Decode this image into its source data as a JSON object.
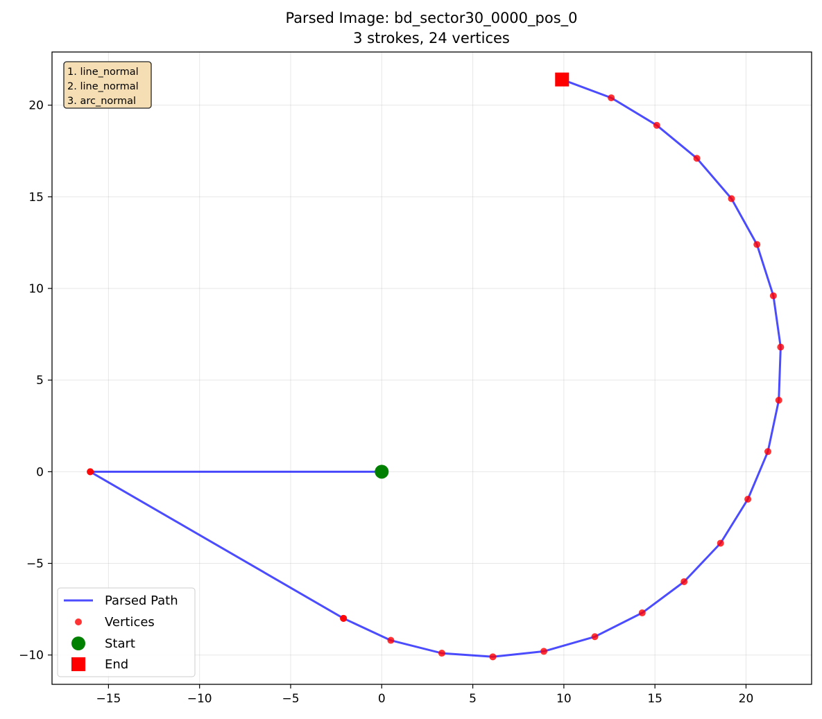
{
  "chart_data": {
    "type": "line",
    "title": "Parsed Image: bd_sector30_0000_pos_0",
    "subtitle": "3 strokes, 24 vertices",
    "xlabel": "",
    "ylabel": "",
    "xlim": [
      -18.1,
      23.6
    ],
    "ylim": [
      -11.6,
      22.9
    ],
    "xticks": [
      -15,
      -10,
      -5,
      0,
      5,
      10,
      15,
      20
    ],
    "yticks": [
      -10,
      -5,
      0,
      5,
      10,
      15,
      20
    ],
    "xtick_labels": [
      "−15",
      "−10",
      "−5",
      "0",
      "5",
      "10",
      "15",
      "20"
    ],
    "ytick_labels": [
      "−10",
      "−5",
      "0",
      "5",
      "10",
      "15",
      "20"
    ],
    "grid": true,
    "legend_position": "lower-left",
    "path": {
      "name": "Parsed Path",
      "color": "#0000ff",
      "x": [
        0,
        -16.0,
        -2.1,
        0.5,
        3.3,
        6.1,
        8.9,
        11.7,
        14.3,
        16.6,
        18.6,
        20.1,
        21.2,
        21.8,
        21.9,
        21.5,
        20.6,
        19.2,
        17.3,
        15.1,
        12.6,
        9.9
      ],
      "y": [
        0,
        0,
        -8.0,
        -9.2,
        -9.9,
        -10.1,
        -9.8,
        -9.0,
        -7.7,
        -6.0,
        -3.9,
        -1.5,
        1.1,
        3.9,
        6.8,
        9.6,
        12.4,
        14.9,
        17.1,
        18.9,
        20.4,
        21.4
      ]
    },
    "vertices": {
      "name": "Vertices",
      "color": "#ff0000",
      "x": [
        0,
        -16.0,
        -16.0,
        -2.1,
        0.5,
        3.3,
        6.1,
        8.9,
        11.7,
        14.3,
        16.6,
        18.6,
        20.1,
        21.2,
        21.8,
        21.9,
        21.5,
        20.6,
        19.2,
        17.3,
        15.1,
        12.6,
        9.9,
        -2.1
      ],
      "y": [
        0,
        0,
        0,
        -8.0,
        -9.2,
        -9.9,
        -10.1,
        -9.8,
        -9.0,
        -7.7,
        -6.0,
        -3.9,
        -1.5,
        1.1,
        3.9,
        6.8,
        9.6,
        12.4,
        14.9,
        17.1,
        18.9,
        20.4,
        21.4,
        -8.0
      ]
    },
    "start": {
      "name": "Start",
      "color": "#008000",
      "x": 0,
      "y": 0
    },
    "end": {
      "name": "End",
      "color": "#ff0000",
      "x": 9.9,
      "y": 21.4
    },
    "legend": [
      "Parsed Path",
      "Vertices",
      "Start",
      "End"
    ],
    "info_box": {
      "lines": [
        "1. line_normal",
        "2. line_normal",
        "3. arc_normal"
      ],
      "background": "#f5deb3",
      "position": "top-left"
    }
  }
}
